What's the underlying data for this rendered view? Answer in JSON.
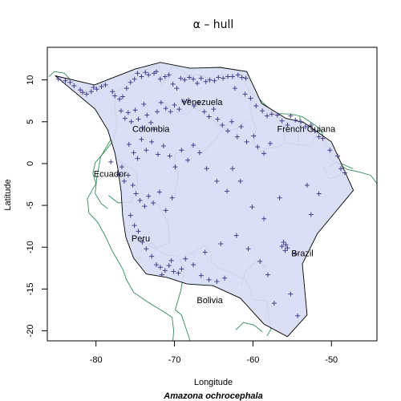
{
  "chart_data": {
    "type": "scatter",
    "title": "α – hull",
    "subtitle": "Amazona ochrocephala",
    "xlabel": "Longitude",
    "ylabel": "Latitude",
    "xlim": [
      -86.2,
      -44.2
    ],
    "ylim": [
      -21.2,
      13.9
    ],
    "xticks": [
      -80,
      -70,
      -60,
      -50
    ],
    "yticks": [
      -20,
      -15,
      -10,
      -5,
      0,
      5,
      10
    ],
    "grid": false,
    "legend": "none",
    "colors": {
      "hull_fill": "#d6dbf5",
      "hull_stroke": "#000000",
      "points": "#483d8b",
      "coastline": "#2e8b57"
    },
    "annotations": [
      {
        "text": "Venezuela",
        "x": -66.5,
        "y": 7.0
      },
      {
        "text": "Colombia",
        "x": -73.0,
        "y": 3.8
      },
      {
        "text": "French Guiana",
        "x": -53.2,
        "y": 3.8
      },
      {
        "text": "Ecuador",
        "x": -78.2,
        "y": -1.6
      },
      {
        "text": "Peru",
        "x": -74.3,
        "y": -9.3
      },
      {
        "text": "Brazil",
        "x": -53.7,
        "y": -11.1
      },
      {
        "text": "Bolivia",
        "x": -65.5,
        "y": -16.7
      }
    ],
    "hull": [
      [
        -85.2,
        10.5
      ],
      [
        -80.2,
        9.4
      ],
      [
        -75.0,
        11.3
      ],
      [
        -71.8,
        12.1
      ],
      [
        -68.0,
        11.4
      ],
      [
        -64.2,
        11.5
      ],
      [
        -60.8,
        11.0
      ],
      [
        -58.9,
        7.2
      ],
      [
        -55.8,
        5.4
      ],
      [
        -53.5,
        4.9
      ],
      [
        -50.0,
        2.6
      ],
      [
        -47.2,
        -3.2
      ],
      [
        -49.5,
        -5.8
      ],
      [
        -51.8,
        -8.4
      ],
      [
        -53.7,
        -12.0
      ],
      [
        -53.1,
        -18.1
      ],
      [
        -55.6,
        -20.7
      ],
      [
        -58.6,
        -19.2
      ],
      [
        -61.6,
        -16.1
      ],
      [
        -65.1,
        -14.6
      ],
      [
        -68.4,
        -14.4
      ],
      [
        -71.0,
        -13.6
      ],
      [
        -73.6,
        -13.2
      ],
      [
        -75.2,
        -11.3
      ],
      [
        -76.2,
        -8.8
      ],
      [
        -76.6,
        -6.2
      ],
      [
        -76.8,
        -3.3
      ],
      [
        -77.2,
        -0.7
      ],
      [
        -77.6,
        1.3
      ],
      [
        -78.5,
        4.0
      ],
      [
        -80.1,
        6.5
      ],
      [
        -82.9,
        8.7
      ]
    ],
    "points": [
      [
        -84.8,
        10.1
      ],
      [
        -83.9,
        9.9
      ],
      [
        -83.3,
        9.7
      ],
      [
        -82.8,
        9.3
      ],
      [
        -82.0,
        8.8
      ],
      [
        -81.7,
        8.5
      ],
      [
        -81.2,
        8.3
      ],
      [
        -80.6,
        8.6
      ],
      [
        -80.3,
        9.1
      ],
      [
        -79.9,
        8.9
      ],
      [
        -79.3,
        9.2
      ],
      [
        -78.8,
        9.4
      ],
      [
        -77.9,
        8.6
      ],
      [
        -77.6,
        8.1
      ],
      [
        -77.0,
        7.7
      ],
      [
        -76.6,
        8.0
      ],
      [
        -76.1,
        9.0
      ],
      [
        -75.6,
        9.7
      ],
      [
        -75.1,
        10.1
      ],
      [
        -74.7,
        10.8
      ],
      [
        -74.2,
        10.4
      ],
      [
        -73.7,
        10.9
      ],
      [
        -73.3,
        10.6
      ],
      [
        -72.6,
        10.8
      ],
      [
        -72.3,
        11.0
      ],
      [
        -71.8,
        10.1
      ],
      [
        -71.2,
        10.4
      ],
      [
        -70.7,
        10.6
      ],
      [
        -70.2,
        9.5
      ],
      [
        -69.7,
        9.0
      ],
      [
        -69.2,
        10.2
      ],
      [
        -68.7,
        10.0
      ],
      [
        -68.1,
        10.3
      ],
      [
        -67.6,
        10.1
      ],
      [
        -67.1,
        9.6
      ],
      [
        -66.6,
        10.2
      ],
      [
        -66.0,
        9.8
      ],
      [
        -65.5,
        10.0
      ],
      [
        -64.9,
        9.9
      ],
      [
        -64.4,
        10.3
      ],
      [
        -63.8,
        10.2
      ],
      [
        -63.2,
        10.4
      ],
      [
        -62.6,
        10.4
      ],
      [
        -61.9,
        10.6
      ],
      [
        -61.4,
        10.3
      ],
      [
        -60.9,
        10.2
      ],
      [
        -62.3,
        9.0
      ],
      [
        -61.0,
        8.3
      ],
      [
        -60.3,
        7.8
      ],
      [
        -59.6,
        6.9
      ],
      [
        -58.8,
        6.3
      ],
      [
        -58.2,
        5.7
      ],
      [
        -57.6,
        5.9
      ],
      [
        -56.9,
        5.8
      ],
      [
        -56.3,
        5.1
      ],
      [
        -55.6,
        4.6
      ],
      [
        -55.2,
        5.7
      ],
      [
        -54.6,
        5.2
      ],
      [
        -53.9,
        5.0
      ],
      [
        -53.3,
        4.4
      ],
      [
        -52.6,
        4.6
      ],
      [
        -52.1,
        3.9
      ],
      [
        -51.6,
        3.2
      ],
      [
        -51.1,
        3.0
      ],
      [
        -50.2,
        1.6
      ],
      [
        -49.2,
        0.9
      ],
      [
        -48.8,
        -0.6
      ],
      [
        -48.3,
        -1.1
      ],
      [
        -76.8,
        6.3
      ],
      [
        -76.3,
        5.4
      ],
      [
        -75.9,
        6.1
      ],
      [
        -75.5,
        5.0
      ],
      [
        -75.0,
        6.4
      ],
      [
        -74.6,
        5.3
      ],
      [
        -74.1,
        4.3
      ],
      [
        -73.9,
        7.1
      ],
      [
        -73.5,
        5.8
      ],
      [
        -73.0,
        4.9
      ],
      [
        -72.6,
        4.1
      ],
      [
        -72.2,
        6.2
      ],
      [
        -71.7,
        7.3
      ],
      [
        -71.1,
        6.6
      ],
      [
        -70.5,
        6.2
      ],
      [
        -70.0,
        7.0
      ],
      [
        -69.4,
        6.5
      ],
      [
        -68.8,
        7.4
      ],
      [
        -68.2,
        7.6
      ],
      [
        -67.5,
        6.9
      ],
      [
        -66.9,
        7.3
      ],
      [
        -66.2,
        6.2
      ],
      [
        -65.6,
        5.6
      ],
      [
        -65.0,
        6.5
      ],
      [
        -64.5,
        5.3
      ],
      [
        -63.9,
        4.6
      ],
      [
        -63.2,
        3.9
      ],
      [
        -62.7,
        5.0
      ],
      [
        -62.0,
        3.2
      ],
      [
        -61.5,
        4.4
      ],
      [
        -60.8,
        2.6
      ],
      [
        -59.9,
        3.3
      ],
      [
        -59.4,
        2.0
      ],
      [
        -58.6,
        1.2
      ],
      [
        -57.8,
        2.4
      ],
      [
        -75.8,
        2.3
      ],
      [
        -75.2,
        1.3
      ],
      [
        -74.7,
        0.6
      ],
      [
        -74.2,
        2.9
      ],
      [
        -73.6,
        1.6
      ],
      [
        -72.9,
        2.6
      ],
      [
        -72.1,
        1.1
      ],
      [
        -71.4,
        2.1
      ],
      [
        -70.6,
        0.9
      ],
      [
        -69.9,
        -0.4
      ],
      [
        -69.1,
        1.6
      ],
      [
        -68.3,
        0.4
      ],
      [
        -67.6,
        2.2
      ],
      [
        -66.8,
        1.3
      ],
      [
        -65.9,
        -0.6
      ],
      [
        -64.6,
        -2.1
      ],
      [
        -63.3,
        -3.3
      ],
      [
        -77.1,
        -1.3
      ],
      [
        -76.7,
        -0.4
      ],
      [
        -76.4,
        -2.1
      ],
      [
        -75.9,
        -1.4
      ],
      [
        -75.3,
        -2.6
      ],
      [
        -74.9,
        -3.6
      ],
      [
        -74.4,
        -4.4
      ],
      [
        -73.8,
        -5.1
      ],
      [
        -73.3,
        -3.9
      ],
      [
        -72.7,
        -4.7
      ],
      [
        -71.9,
        -3.4
      ],
      [
        -71.1,
        -5.6
      ],
      [
        -70.3,
        -4.1
      ],
      [
        -75.6,
        -6.2
      ],
      [
        -75.1,
        -7.4
      ],
      [
        -74.6,
        -8.1
      ],
      [
        -74.1,
        -9.4
      ],
      [
        -73.6,
        -10.2
      ],
      [
        -72.9,
        -11.1
      ],
      [
        -72.3,
        -12.1
      ],
      [
        -71.8,
        -12.4
      ],
      [
        -71.2,
        -12.8
      ],
      [
        -70.7,
        -12.2
      ],
      [
        -70.1,
        -12.9
      ],
      [
        -69.5,
        -13.1
      ],
      [
        -69.1,
        -12.6
      ],
      [
        -70.4,
        -11.6
      ],
      [
        -71.6,
        -13.3
      ],
      [
        -68.6,
        -11.4
      ],
      [
        -67.6,
        -12.1
      ],
      [
        -66.6,
        -13.4
      ],
      [
        -65.6,
        -13.9
      ],
      [
        -64.6,
        -14.1
      ],
      [
        -63.6,
        -13.7
      ],
      [
        -66.1,
        -10.6
      ],
      [
        -64.1,
        -9.6
      ],
      [
        -62.1,
        -8.6
      ],
      [
        -60.6,
        -10.2
      ],
      [
        -59.1,
        -11.7
      ],
      [
        -58.1,
        -13.3
      ],
      [
        -57.3,
        -16.7
      ],
      [
        -55.2,
        -15.6
      ],
      [
        -54.3,
        -18.2
      ],
      [
        -56.1,
        -9.4
      ],
      [
        -55.8,
        -9.7
      ],
      [
        -55.6,
        -10.1
      ],
      [
        -55.9,
        -10.4
      ],
      [
        -56.3,
        -9.9
      ],
      [
        -54.6,
        -10.8
      ],
      [
        -58.6,
        -6.6
      ],
      [
        -60.1,
        -5.2
      ],
      [
        -56.6,
        -4.1
      ],
      [
        -53.1,
        -2.6
      ],
      [
        -51.6,
        -3.6
      ],
      [
        -52.6,
        -6.1
      ],
      [
        -61.6,
        -2.1
      ],
      [
        -62.6,
        -0.6
      ],
      [
        -78.1,
        0.2
      ]
    ]
  }
}
